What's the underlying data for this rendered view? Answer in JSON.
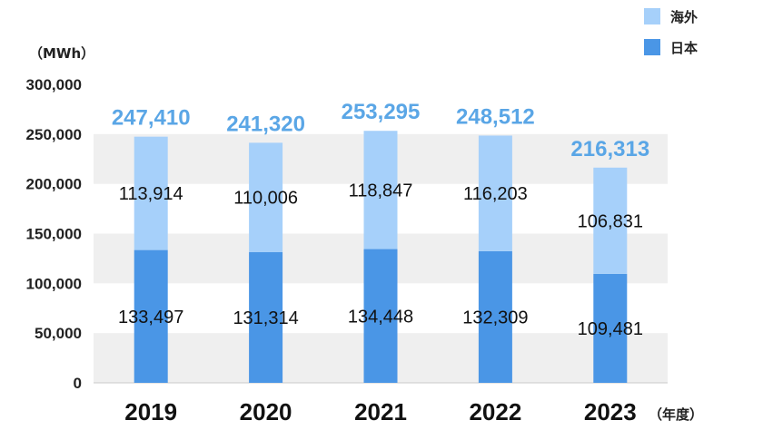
{
  "chart_data": {
    "type": "bar",
    "stacked": true,
    "categories": [
      "2019",
      "2020",
      "2021",
      "2022",
      "2023"
    ],
    "series": [
      {
        "name": "日本",
        "values": [
          133497,
          131314,
          134448,
          132309,
          109481
        ],
        "color": "#4a96e6"
      },
      {
        "name": "海外",
        "values": [
          113914,
          110006,
          118847,
          116203,
          106831
        ],
        "color": "#a6d0fa"
      }
    ],
    "totals": [
      247410,
      241320,
      253295,
      248512,
      216313
    ],
    "total_labels": [
      "247,410",
      "241,320",
      "253,295",
      "248,512",
      "216,313"
    ],
    "segment_labels": {
      "日本": [
        "133,497",
        "131,314",
        "134,448",
        "132,309",
        "109,481"
      ],
      "海外": [
        "113,914",
        "110,006",
        "118,847",
        "116,203",
        "106,831"
      ]
    },
    "yticks": [
      0,
      50000,
      100000,
      150000,
      200000,
      250000,
      300000
    ],
    "ytick_labels": [
      "0",
      "50,000",
      "100,000",
      "150,000",
      "200,000",
      "250,000",
      "300,000"
    ],
    "ylim": [
      0,
      300000
    ],
    "ylabel": "（MWh）",
    "xlabel": "（年度）",
    "legend_position": "top-right",
    "background_band_color": "#efefef",
    "total_label_color": "#5aa6e6"
  }
}
